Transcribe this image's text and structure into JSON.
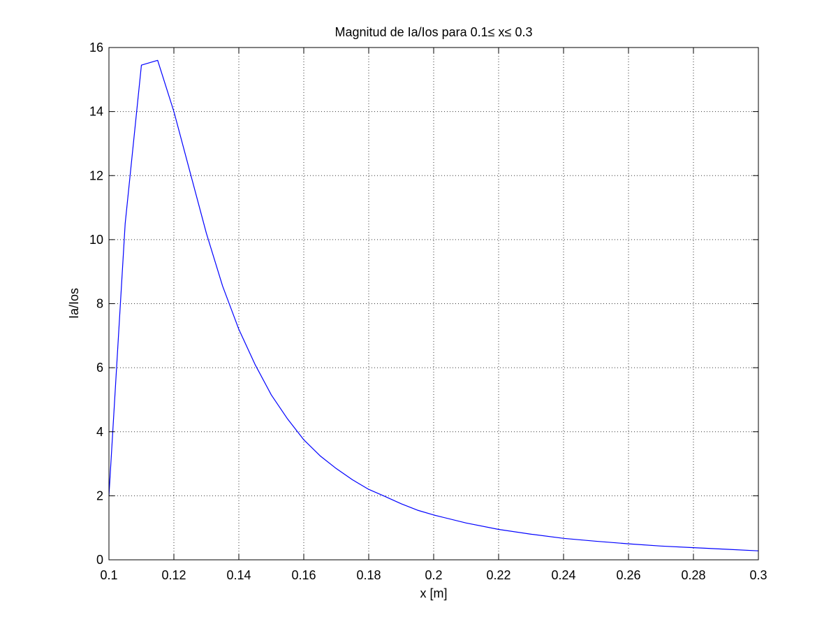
{
  "chart_data": {
    "type": "line",
    "title": "Magnitud de Ia/Ios para 0.1≤ x≤ 0.3",
    "xlabel": "x [m]",
    "ylabel": "Ia/Ios",
    "xlim": [
      0.1,
      0.3
    ],
    "ylim": [
      0,
      16
    ],
    "xticks": [
      0.1,
      0.12,
      0.14,
      0.16,
      0.18,
      0.2,
      0.22,
      0.24,
      0.26,
      0.28,
      0.3
    ],
    "xtick_labels": [
      "0.1",
      "0.12",
      "0.14",
      "0.16",
      "0.18",
      "0.2",
      "0.22",
      "0.24",
      "0.26",
      "0.28",
      "0.3"
    ],
    "yticks": [
      0,
      2,
      4,
      6,
      8,
      10,
      12,
      14,
      16
    ],
    "ytick_labels": [
      "0",
      "2",
      "4",
      "6",
      "8",
      "10",
      "12",
      "14",
      "16"
    ],
    "grid": true,
    "series": [
      {
        "color": "#0000ff",
        "x": [
          0.1,
          0.105,
          0.11,
          0.115,
          0.12,
          0.125,
          0.13,
          0.135,
          0.14,
          0.145,
          0.15,
          0.155,
          0.16,
          0.165,
          0.17,
          0.175,
          0.18,
          0.185,
          0.19,
          0.195,
          0.2,
          0.21,
          0.22,
          0.23,
          0.24,
          0.25,
          0.26,
          0.27,
          0.28,
          0.29,
          0.3
        ],
        "y": [
          2.0,
          10.5,
          15.45,
          15.6,
          14.0,
          12.1,
          10.2,
          8.55,
          7.2,
          6.1,
          5.15,
          4.4,
          3.75,
          3.25,
          2.85,
          2.5,
          2.2,
          1.98,
          1.75,
          1.55,
          1.4,
          1.15,
          0.95,
          0.8,
          0.67,
          0.58,
          0.5,
          0.43,
          0.38,
          0.33,
          0.28
        ]
      }
    ]
  }
}
